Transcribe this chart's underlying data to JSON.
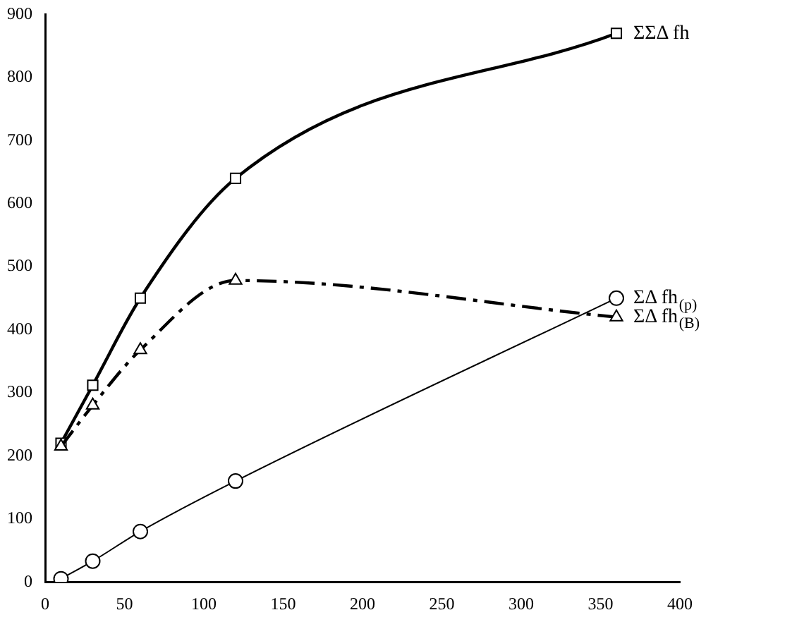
{
  "chart_data": {
    "type": "line",
    "x": [
      10,
      30,
      60,
      120,
      360
    ],
    "series": [
      {
        "name": "ΣΣΔ fh",
        "color": "#000000",
        "values": [
          220,
          312,
          450,
          640,
          870
        ],
        "marker": "square",
        "line_style": "solid"
      },
      {
        "name": "ΣΔ fh$_{(p)}$",
        "color": "#000000",
        "values": [
          5,
          33,
          80,
          160,
          450
        ],
        "marker": "circle",
        "line_style": "solid"
      },
      {
        "name": "ΣΔ fh$_{(B)}$",
        "color": "#000000",
        "values": [
          215,
          280,
          368,
          478,
          420
        ],
        "marker": "triangle",
        "line_style": "dashed"
      }
    ],
    "xlim": [
      0,
      400
    ],
    "xticks": [
      0,
      50,
      100,
      150,
      200,
      250,
      300,
      350,
      400
    ],
    "ylim": [
      0,
      900
    ],
    "yticks": [
      0,
      100,
      200,
      300,
      400,
      500,
      600,
      700,
      800,
      900
    ],
    "grid": false,
    "legend": false
  }
}
